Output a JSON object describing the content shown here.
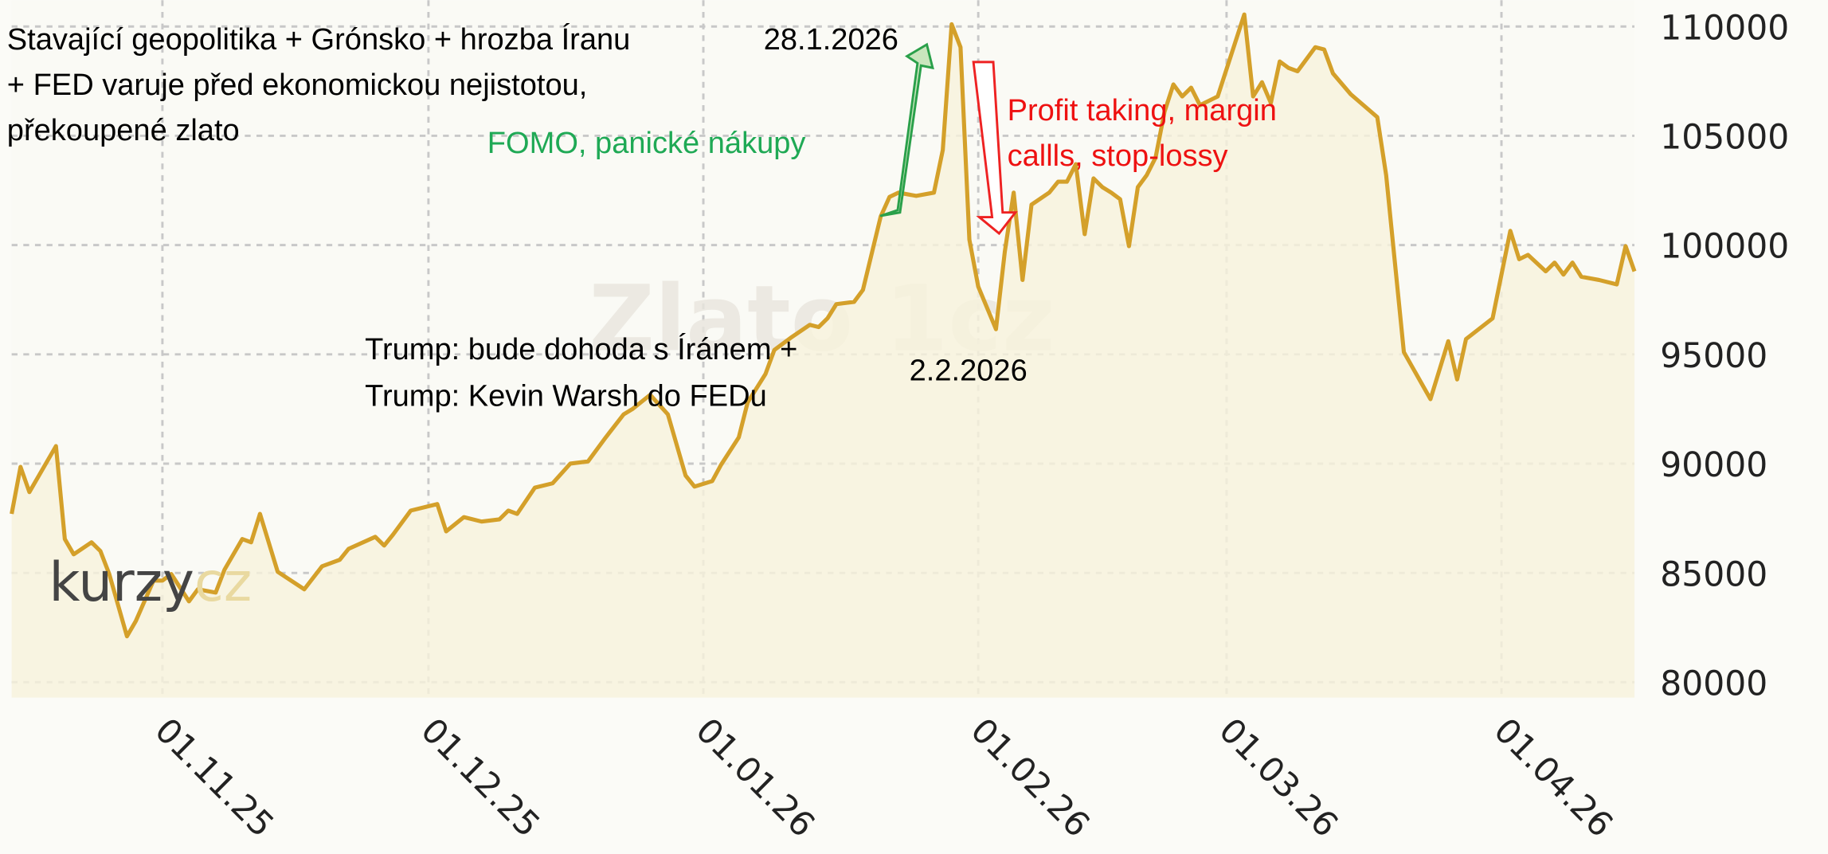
{
  "chart_data": {
    "type": "line",
    "watermark": "Zlato 1cz",
    "logo": {
      "left": "kurzy",
      "right": "cz"
    },
    "color": "#d4a02a",
    "area_color": "#f7f3dc",
    "grid": true,
    "x": [
      "2025-10-15",
      "2025-10-16",
      "2025-10-17",
      "2025-10-20",
      "2025-10-21",
      "2025-10-22",
      "2025-10-24",
      "2025-10-25",
      "2025-10-26",
      "2025-10-28",
      "2025-10-29",
      "2025-10-31",
      "2025-11-01",
      "2025-11-02",
      "2025-11-04",
      "2025-11-05",
      "2025-11-07",
      "2025-11-08",
      "2025-11-10",
      "2025-11-11",
      "2025-11-12",
      "2025-11-14",
      "2025-11-17",
      "2025-11-19",
      "2025-11-21",
      "2025-11-22",
      "2025-11-25",
      "2025-11-26",
      "2025-11-27",
      "2025-11-29",
      "2025-12-02",
      "2025-12-03",
      "2025-12-05",
      "2025-12-07",
      "2025-12-09",
      "2025-12-10",
      "2025-12-11",
      "2025-12-13",
      "2025-12-15",
      "2025-12-17",
      "2025-12-19",
      "2025-12-21",
      "2025-12-23",
      "2025-12-24",
      "2025-12-26",
      "2025-12-28",
      "2025-12-30",
      "2025-12-31",
      "2026-01-02",
      "2026-01-03",
      "2026-01-05",
      "2026-01-06",
      "2026-01-08",
      "2026-01-09",
      "2026-01-11",
      "2026-01-13",
      "2026-01-14",
      "2026-01-15",
      "2026-01-16",
      "2026-01-18",
      "2026-01-19",
      "2026-01-21",
      "2026-01-22",
      "2026-01-23",
      "2026-01-25",
      "2026-01-27",
      "2026-01-28",
      "2026-01-29",
      "2026-01-30",
      "2026-01-31",
      "2026-02-01",
      "2026-02-03",
      "2026-02-04",
      "2026-02-05",
      "2026-02-06",
      "2026-02-07",
      "2026-02-09",
      "2026-02-10",
      "2026-02-11",
      "2026-02-12",
      "2026-02-13",
      "2026-02-14",
      "2026-02-15",
      "2026-02-16",
      "2026-02-17",
      "2026-02-18",
      "2026-02-19",
      "2026-02-20",
      "2026-02-21",
      "2026-02-22",
      "2026-02-23",
      "2026-02-24",
      "2026-02-25",
      "2026-02-26",
      "2026-02-28",
      "2026-03-03",
      "2026-03-04",
      "2026-03-05",
      "2026-03-06",
      "2026-03-07",
      "2026-03-08",
      "2026-03-09",
      "2026-03-11",
      "2026-03-12",
      "2026-03-13",
      "2026-03-15",
      "2026-03-18",
      "2026-03-19",
      "2026-03-21",
      "2026-03-24",
      "2026-03-26",
      "2026-03-27",
      "2026-03-28",
      "2026-03-31",
      "2026-04-02",
      "2026-04-03",
      "2026-04-04",
      "2026-04-06",
      "2026-04-07",
      "2026-04-08",
      "2026-04-09",
      "2026-04-10",
      "2026-04-12",
      "2026-04-14",
      "2026-04-15",
      "2026-04-16"
    ],
    "values": [
      87700,
      89850,
      88700,
      90800,
      86550,
      85850,
      86400,
      86000,
      84950,
      82100,
      82800,
      84650,
      84650,
      84950,
      83700,
      84250,
      84100,
      85150,
      86550,
      86400,
      87700,
      85050,
      84250,
      85300,
      85600,
      86100,
      86650,
      86250,
      86750,
      87850,
      88150,
      86900,
      87550,
      87350,
      87450,
      87850,
      87700,
      88900,
      89100,
      90000,
      90100,
      91200,
      92250,
      92500,
      93150,
      92250,
      89450,
      88950,
      89200,
      89950,
      91200,
      92800,
      94100,
      95200,
      95800,
      96350,
      96250,
      96650,
      97300,
      97400,
      97950,
      101300,
      102200,
      102400,
      102250,
      102400,
      104350,
      110100,
      109050,
      100250,
      98100,
      96150,
      99700,
      102400,
      98400,
      101850,
      102400,
      102900,
      102900,
      103700,
      100500,
      103050,
      102650,
      102400,
      102100,
      99950,
      102650,
      103200,
      104000,
      106100,
      107350,
      106800,
      107200,
      106400,
      106800,
      110550,
      106800,
      107450,
      106500,
      108400,
      108100,
      107950,
      109050,
      108950,
      107850,
      106900,
      105850,
      103200,
      95100,
      92950,
      95600,
      93850,
      95700,
      96650,
      100650,
      99350,
      99550,
      98800,
      99200,
      98650,
      99200,
      98550,
      98400,
      98200,
      99950,
      98800
    ],
    "xlim": [
      "2025-10-15",
      "2026-04-16"
    ],
    "xticks": [
      {
        "value": "2025-11-01",
        "label": "01.11.25"
      },
      {
        "value": "2025-12-01",
        "label": "01.12.25"
      },
      {
        "value": "2026-01-01",
        "label": "01.01.26"
      },
      {
        "value": "2026-02-01",
        "label": "01.02.26"
      },
      {
        "value": "2026-03-01",
        "label": "01.03.26"
      },
      {
        "value": "2026-04-01",
        "label": "01.04.26"
      }
    ],
    "ylim": [
      79300,
      111200
    ],
    "yticks": [
      80000,
      85000,
      90000,
      95000,
      100000,
      105000,
      110000
    ],
    "annotations": [
      {
        "lines": [
          "Stavající geopolitika + Grónsko + hrozba Íranu",
          "+ FED varuje před ekonomickou nejistotou,",
          "překoupené zlato"
        ],
        "color": "#000000"
      },
      {
        "lines": [
          "28.1.2026"
        ],
        "color": "#000000"
      },
      {
        "lines": [
          "FOMO, panické nákupy"
        ],
        "color": "#1fa955"
      },
      {
        "lines": [
          "Profit taking, margin",
          "callls, stop-lossy"
        ],
        "color": "#ee1111"
      },
      {
        "lines": [
          "Trump: bude dohoda s Íránem +",
          "Trump: Kevin Warsh do FEDu"
        ],
        "color": "#000000"
      },
      {
        "lines": [
          "2.2.2026"
        ],
        "color": "#000000"
      }
    ]
  }
}
